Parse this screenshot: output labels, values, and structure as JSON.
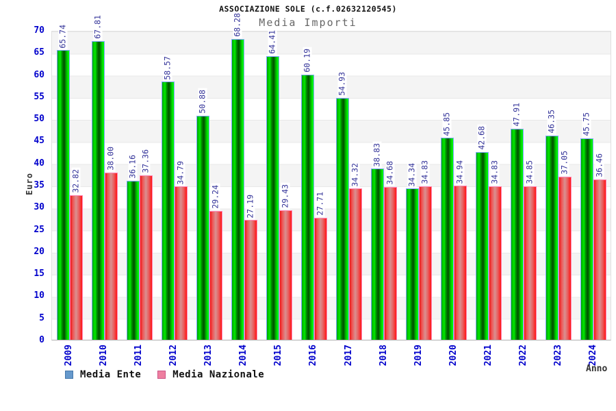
{
  "chart_data": {
    "type": "bar",
    "title": "ASSOCIAZIONE SOLE (c.f.02632120545)",
    "subtitle": "Media Importi",
    "xlabel": "Anno",
    "ylabel": "Euro",
    "ylim": [
      0,
      70
    ],
    "ytick_step": 5,
    "yticks": [
      0,
      5,
      10,
      15,
      20,
      25,
      30,
      35,
      40,
      45,
      50,
      55,
      60,
      65,
      70
    ],
    "grid": "alternating horizontal gray/white bands every 5 units, horizontal gridlines",
    "legend_position": "bottom-left",
    "categories": [
      "2009",
      "2010",
      "2011",
      "2012",
      "2013",
      "2014",
      "2015",
      "2016",
      "2017",
      "2018",
      "2019",
      "2020",
      "2021",
      "2022",
      "2023",
      "2024"
    ],
    "series": [
      {
        "name": "Media Ente",
        "legend_color": "#6699cc",
        "bar_color": "green",
        "values": [
          65.74,
          67.81,
          36.16,
          58.57,
          50.88,
          68.28,
          64.41,
          60.19,
          54.93,
          38.83,
          34.34,
          45.85,
          42.68,
          47.91,
          46.35,
          45.75
        ],
        "labels": [
          "65.74",
          "67.81",
          "36.16",
          "58.57",
          "50.88",
          "68.28",
          "64.41",
          "60.19",
          "54.93",
          "38.83",
          "34.34",
          "45.85",
          "42.68",
          "47.91",
          "46.35",
          "45.75"
        ]
      },
      {
        "name": "Media Nazionale",
        "legend_color": "#ee7fa0",
        "bar_color": "red",
        "values": [
          32.82,
          38.0,
          37.36,
          34.79,
          29.24,
          27.19,
          29.43,
          27.71,
          34.32,
          34.68,
          34.83,
          34.94,
          34.83,
          34.85,
          37.05,
          36.46
        ],
        "labels": [
          "32.82",
          "38.00",
          "37.36",
          "34.79",
          "29.24",
          "27.19",
          "29.43",
          "27.71",
          "34.32",
          "34.68",
          "34.83",
          "34.94",
          "34.83",
          "34.85",
          "37.05",
          "36.46"
        ]
      }
    ]
  },
  "colors": {
    "axis_tick_text": "#0000cc",
    "value_label_text": "#333399",
    "band_gray": "#f4f4f4",
    "green_bar_main": "#00cc00",
    "red_bar_main": "#ee2222",
    "axis_title_text": "#333333"
  }
}
